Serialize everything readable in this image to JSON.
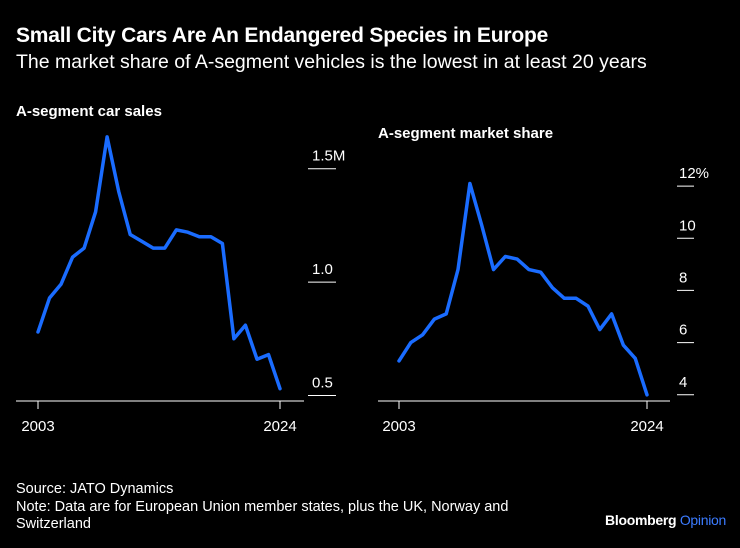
{
  "header": {
    "title": "Small City Cars Are An Endangered Species in Europe",
    "subtitle": "The market share of A-segment vehicles is the lowest in at least 20 years"
  },
  "footer": {
    "source": "Source: JATO Dynamics",
    "note": "Note: Data are for European Union member states, plus the UK, Norway and Switzerland"
  },
  "brand": {
    "name": "Bloomberg",
    "suffix": "Opinion"
  },
  "colors": {
    "line": "#1a6cff",
    "background": "#000000",
    "text": "#ffffff",
    "brand_accent": "#3b7bff"
  },
  "chart_data": [
    {
      "type": "line",
      "title": "A-segment car sales",
      "x": [
        2003,
        2004,
        2005,
        2006,
        2007,
        2008,
        2009,
        2010,
        2011,
        2012,
        2013,
        2014,
        2015,
        2016,
        2017,
        2018,
        2019,
        2020,
        2021,
        2022,
        2023,
        2024
      ],
      "values": [
        0.78,
        0.93,
        0.99,
        1.11,
        1.15,
        1.31,
        1.64,
        1.4,
        1.21,
        1.18,
        1.15,
        1.15,
        1.23,
        1.22,
        1.2,
        1.2,
        1.17,
        0.75,
        0.81,
        0.66,
        0.68,
        0.53
      ],
      "ylim": [
        0.48,
        1.75
      ],
      "yticks": [
        0.5,
        1.0,
        1.5
      ],
      "ytick_labels": [
        "0.5",
        "1.0",
        "1.5M"
      ],
      "xtick_labels": [
        "2003",
        "2024"
      ]
    },
    {
      "type": "line",
      "title": "A-segment market share",
      "x": [
        2003,
        2004,
        2005,
        2006,
        2007,
        2008,
        2009,
        2010,
        2011,
        2012,
        2013,
        2014,
        2015,
        2016,
        2017,
        2018,
        2019,
        2020,
        2021,
        2022,
        2023,
        2024
      ],
      "values": [
        5.3,
        6.0,
        6.3,
        6.9,
        7.1,
        8.8,
        12.1,
        10.5,
        8.8,
        9.3,
        9.2,
        8.8,
        8.7,
        8.1,
        7.7,
        7.7,
        7.4,
        6.5,
        7.1,
        5.9,
        5.4,
        4.0
      ],
      "ylim": [
        3.8,
        13.0
      ],
      "yticks": [
        4,
        6,
        8,
        10,
        12
      ],
      "ytick_labels": [
        "4",
        "6",
        "8",
        "10",
        "12%"
      ],
      "xtick_labels": [
        "2003",
        "2024"
      ]
    }
  ]
}
